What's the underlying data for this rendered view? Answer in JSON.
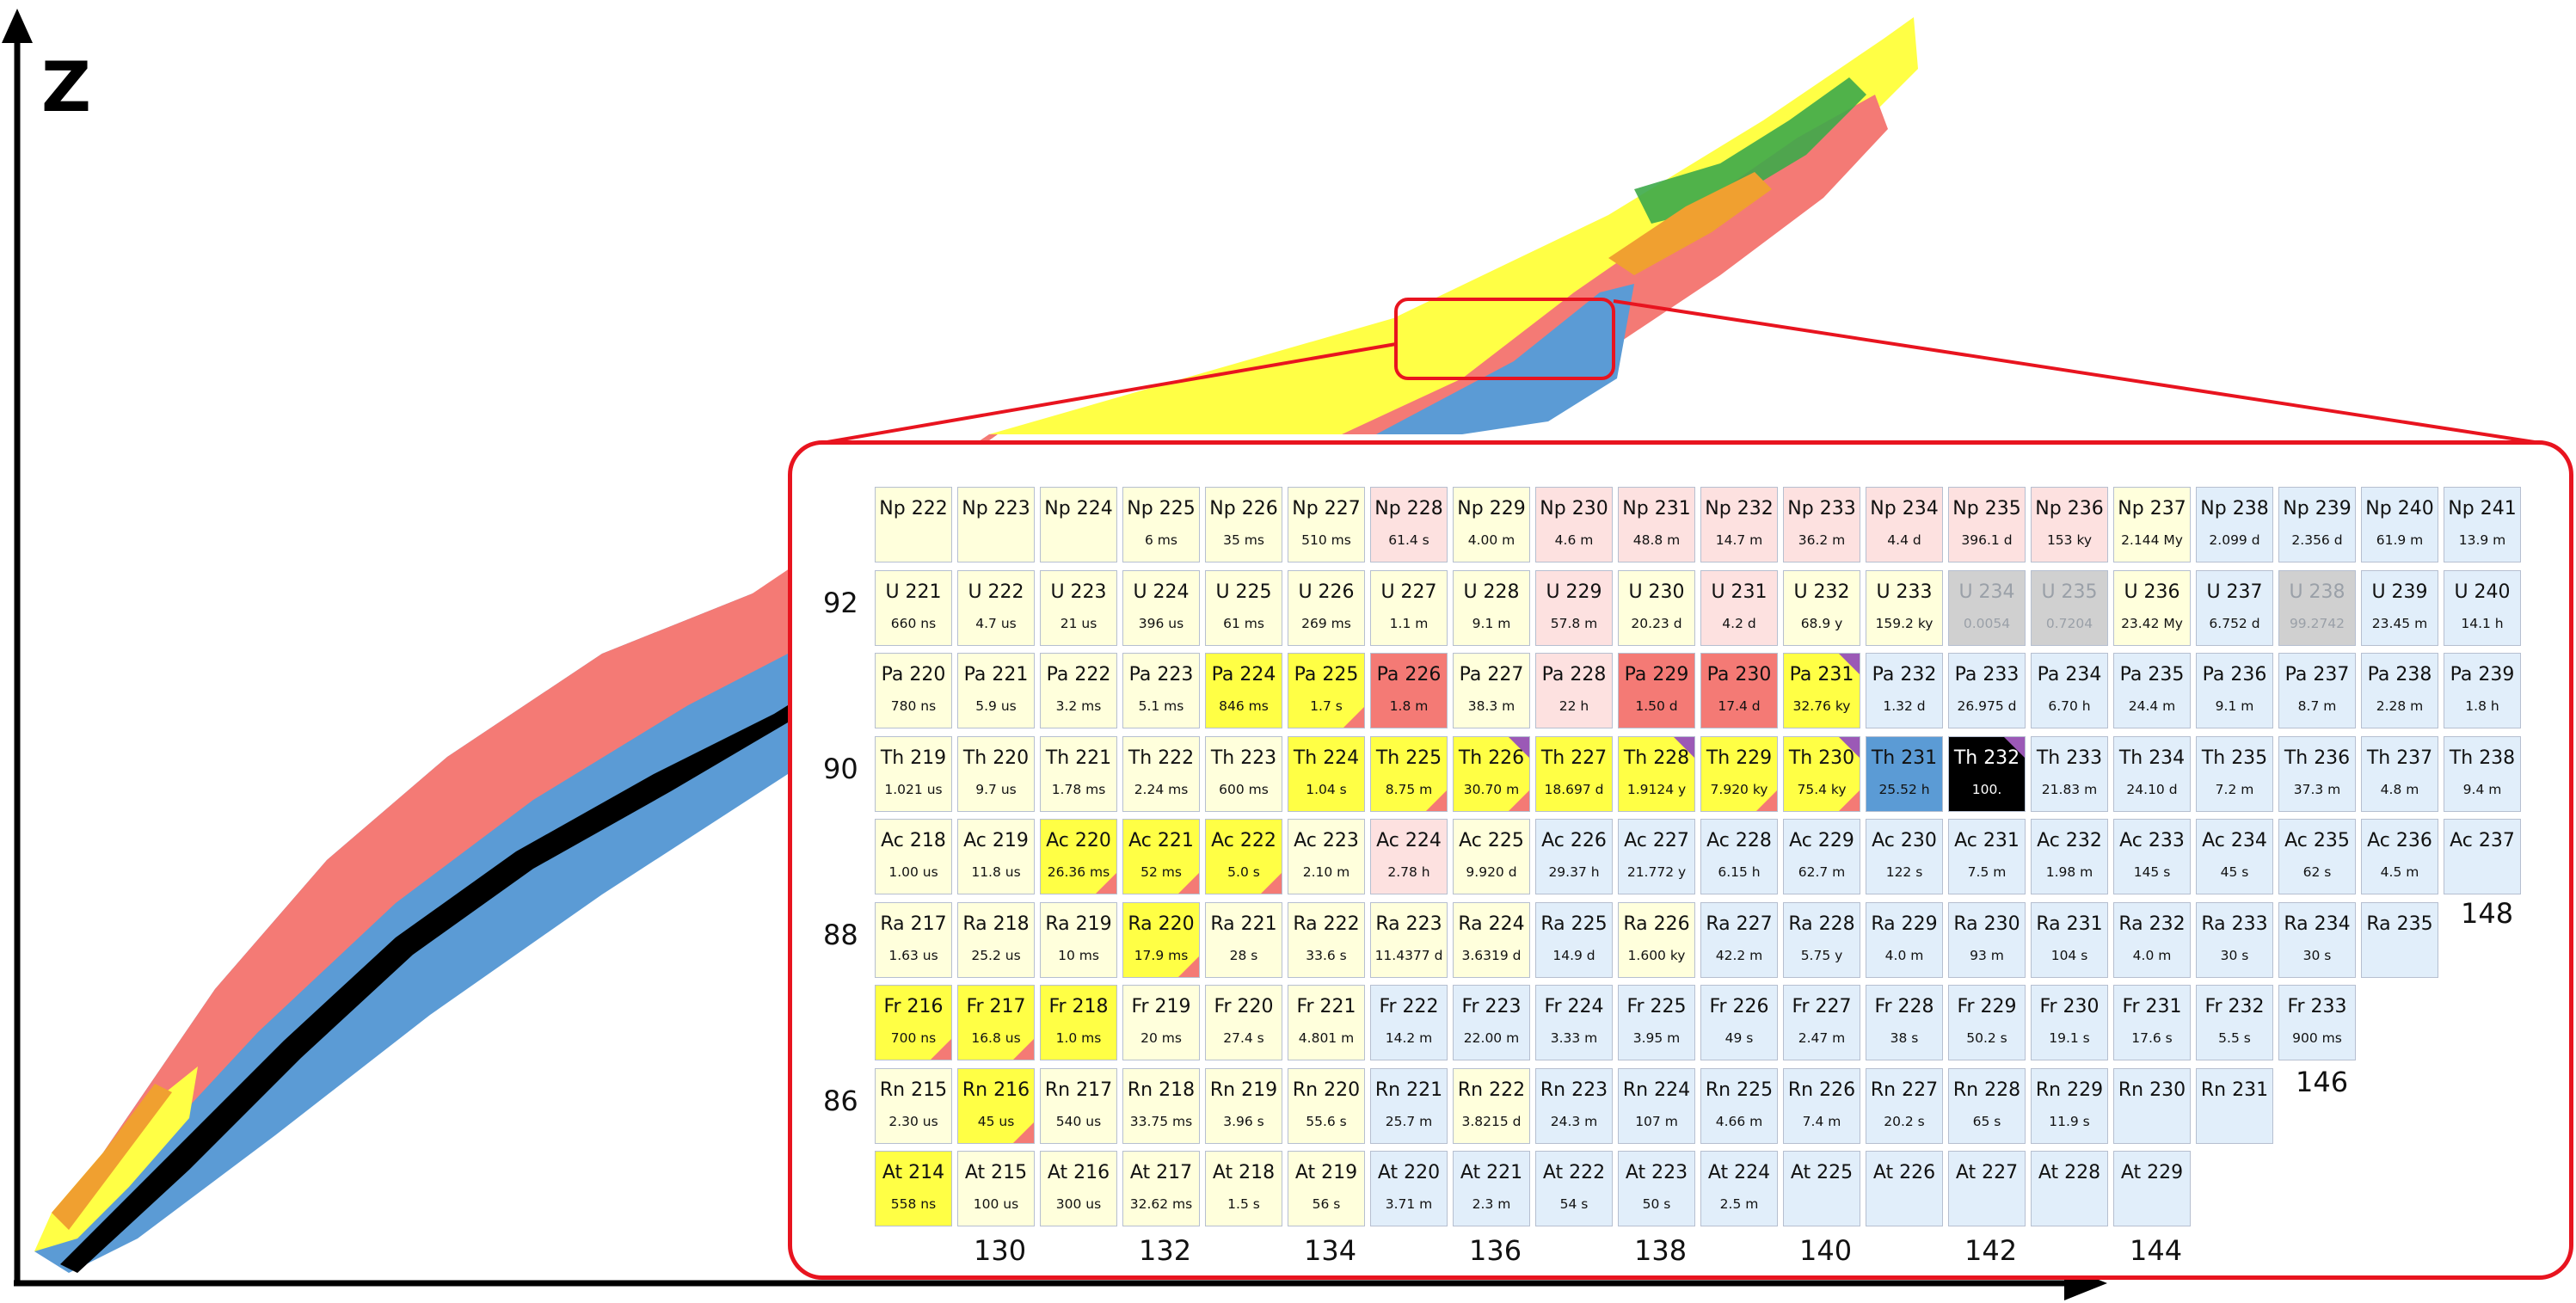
{
  "axis": {
    "z_label": "Z"
  },
  "z_labels": [
    "92",
    "90",
    "88",
    "86"
  ],
  "n_labels_bottom": [
    "130",
    "132",
    "134",
    "136",
    "138",
    "140",
    "142",
    "144"
  ],
  "n_labels_side": [
    "148",
    "146"
  ],
  "colors": {
    "alpha": "#ffff45",
    "alpha_light": "#ffffdc",
    "beta_minus": "#5b9bd5",
    "beta_minus_light": "#e1eefa",
    "beta_plus": "#f47a75",
    "beta_plus_light": "#fde1e0",
    "stable": "#000000",
    "sf": "#3daa4a",
    "cluster": "#9b59b6",
    "zoom_border": "#e8141f",
    "unknown": "#d0d0d0"
  },
  "rows": [
    {
      "z": 93,
      "cells": [
        {
          "n": "Np 222",
          "h": "",
          "c": "ay"
        },
        {
          "n": "Np 223",
          "h": "",
          "c": "ay"
        },
        {
          "n": "Np 224",
          "h": "",
          "c": "ay"
        },
        {
          "n": "Np 225",
          "h": "6 ms",
          "c": "ay"
        },
        {
          "n": "Np 226",
          "h": "35 ms",
          "c": "ay"
        },
        {
          "n": "Np 227",
          "h": "510 ms",
          "c": "ay"
        },
        {
          "n": "Np 228",
          "h": "61.4 s",
          "c": "pr"
        },
        {
          "n": "Np 229",
          "h": "4.00 m",
          "c": "ay"
        },
        {
          "n": "Np 230",
          "h": "4.6 m",
          "c": "pr"
        },
        {
          "n": "Np 231",
          "h": "48.8 m",
          "c": "pr"
        },
        {
          "n": "Np 232",
          "h": "14.7 m",
          "c": "pr"
        },
        {
          "n": "Np 233",
          "h": "36.2 m",
          "c": "pr"
        },
        {
          "n": "Np 234",
          "h": "4.4 d",
          "c": "pr"
        },
        {
          "n": "Np 235",
          "h": "396.1 d",
          "c": "pr"
        },
        {
          "n": "Np 236",
          "h": "153 ky",
          "c": "pr"
        },
        {
          "n": "Np 237",
          "h": "2.144 My",
          "c": "ay"
        },
        {
          "n": "Np 238",
          "h": "2.099 d",
          "c": "bl"
        },
        {
          "n": "Np 239",
          "h": "2.356 d",
          "c": "bl"
        },
        {
          "n": "Np 240",
          "h": "61.9 m",
          "c": "bl"
        },
        {
          "n": "Np 241",
          "h": "13.9 m",
          "c": "bl"
        }
      ]
    },
    {
      "z": 92,
      "cells": [
        {
          "n": "U 221",
          "h": "660 ns",
          "c": "ay"
        },
        {
          "n": "U 222",
          "h": "4.7 us",
          "c": "ay"
        },
        {
          "n": "U 223",
          "h": "21 us",
          "c": "ay"
        },
        {
          "n": "U 224",
          "h": "396 us",
          "c": "ay"
        },
        {
          "n": "U 225",
          "h": "61 ms",
          "c": "ay"
        },
        {
          "n": "U 226",
          "h": "269 ms",
          "c": "ay"
        },
        {
          "n": "U 227",
          "h": "1.1 m",
          "c": "ay"
        },
        {
          "n": "U 228",
          "h": "9.1 m",
          "c": "ay"
        },
        {
          "n": "U 229",
          "h": "57.8 m",
          "c": "pr"
        },
        {
          "n": "U 230",
          "h": "20.23 d",
          "c": "ay"
        },
        {
          "n": "U 231",
          "h": "4.2 d",
          "c": "pr"
        },
        {
          "n": "U 232",
          "h": "68.9 y",
          "c": "ay"
        },
        {
          "n": "U 233",
          "h": "159.2 ky",
          "c": "ay"
        },
        {
          "n": "U 234",
          "h": "0.0054",
          "c": "gy"
        },
        {
          "n": "U 235",
          "h": "0.7204",
          "c": "gy"
        },
        {
          "n": "U 236",
          "h": "23.42 My",
          "c": "ay"
        },
        {
          "n": "U 237",
          "h": "6.752 d",
          "c": "bl"
        },
        {
          "n": "U 238",
          "h": "99.2742",
          "c": "gy"
        },
        {
          "n": "U 239",
          "h": "23.45 m",
          "c": "bl"
        },
        {
          "n": "U 240",
          "h": "14.1 h",
          "c": "bl"
        }
      ]
    },
    {
      "z": 91,
      "cells": [
        {
          "n": "Pa 220",
          "h": "780 ns",
          "c": "ay"
        },
        {
          "n": "Pa 221",
          "h": "5.9 us",
          "c": "ay"
        },
        {
          "n": "Pa 222",
          "h": "3.2 ms",
          "c": "ay"
        },
        {
          "n": "Pa 223",
          "h": "5.1 ms",
          "c": "ay"
        },
        {
          "n": "Pa 224",
          "h": "846 ms",
          "c": "AY"
        },
        {
          "n": "Pa 225",
          "h": "1.7 s",
          "c": "AY"
        },
        {
          "n": "Pa 226",
          "h": "1.8 m",
          "c": "RD"
        },
        {
          "n": "Pa 227",
          "h": "38.3 m",
          "c": "ay"
        },
        {
          "n": "Pa 228",
          "h": "22 h",
          "c": "pr"
        },
        {
          "n": "Pa 229",
          "h": "1.50 d",
          "c": "RD"
        },
        {
          "n": "Pa 230",
          "h": "17.4 d",
          "c": "RD"
        },
        {
          "n": "Pa 231",
          "h": "32.76 ky",
          "c": "AY"
        },
        {
          "n": "Pa 232",
          "h": "1.32 d",
          "c": "bl"
        },
        {
          "n": "Pa 233",
          "h": "26.975 d",
          "c": "bl"
        },
        {
          "n": "Pa 234",
          "h": "6.70 h",
          "c": "bl"
        },
        {
          "n": "Pa 235",
          "h": "24.4 m",
          "c": "bl"
        },
        {
          "n": "Pa 236",
          "h": "9.1 m",
          "c": "bl"
        },
        {
          "n": "Pa 237",
          "h": "8.7 m",
          "c": "bl"
        },
        {
          "n": "Pa 238",
          "h": "2.28 m",
          "c": "bl"
        },
        {
          "n": "Pa 239",
          "h": "1.8 h",
          "c": "bl"
        }
      ]
    },
    {
      "z": 90,
      "cells": [
        {
          "n": "Th 219",
          "h": "1.021 us",
          "c": "ay"
        },
        {
          "n": "Th 220",
          "h": "9.7 us",
          "c": "ay"
        },
        {
          "n": "Th 221",
          "h": "1.78 ms",
          "c": "ay"
        },
        {
          "n": "Th 222",
          "h": "2.24 ms",
          "c": "ay"
        },
        {
          "n": "Th 223",
          "h": "600 ms",
          "c": "ay"
        },
        {
          "n": "Th 224",
          "h": "1.04 s",
          "c": "AY"
        },
        {
          "n": "Th 225",
          "h": "8.75 m",
          "c": "AY"
        },
        {
          "n": "Th 226",
          "h": "30.70 m",
          "c": "AY"
        },
        {
          "n": "Th 227",
          "h": "18.697 d",
          "c": "AY"
        },
        {
          "n": "Th 228",
          "h": "1.9124 y",
          "c": "AY"
        },
        {
          "n": "Th 229",
          "h": "7.920 ky",
          "c": "AY"
        },
        {
          "n": "Th 230",
          "h": "75.4 ky",
          "c": "AY"
        },
        {
          "n": "Th 231",
          "h": "25.52 h",
          "c": "BL"
        },
        {
          "n": "Th 232",
          "h": "100.",
          "c": "ST"
        },
        {
          "n": "Th 233",
          "h": "21.83 m",
          "c": "bl"
        },
        {
          "n": "Th 234",
          "h": "24.10 d",
          "c": "bl"
        },
        {
          "n": "Th 235",
          "h": "7.2 m",
          "c": "bl"
        },
        {
          "n": "Th 236",
          "h": "37.3 m",
          "c": "bl"
        },
        {
          "n": "Th 237",
          "h": "4.8 m",
          "c": "bl"
        },
        {
          "n": "Th 238",
          "h": "9.4 m",
          "c": "bl"
        }
      ]
    },
    {
      "z": 89,
      "cells": [
        {
          "n": "Ac 218",
          "h": "1.00 us",
          "c": "ay"
        },
        {
          "n": "Ac 219",
          "h": "11.8 us",
          "c": "ay"
        },
        {
          "n": "Ac 220",
          "h": "26.36 ms",
          "c": "AY"
        },
        {
          "n": "Ac 221",
          "h": "52 ms",
          "c": "AY"
        },
        {
          "n": "Ac 222",
          "h": "5.0 s",
          "c": "AY"
        },
        {
          "n": "Ac 223",
          "h": "2.10 m",
          "c": "ay"
        },
        {
          "n": "Ac 224",
          "h": "2.78 h",
          "c": "pr"
        },
        {
          "n": "Ac 225",
          "h": "9.920 d",
          "c": "ay"
        },
        {
          "n": "Ac 226",
          "h": "29.37 h",
          "c": "bl"
        },
        {
          "n": "Ac 227",
          "h": "21.772 y",
          "c": "bl"
        },
        {
          "n": "Ac 228",
          "h": "6.15 h",
          "c": "bl"
        },
        {
          "n": "Ac 229",
          "h": "62.7 m",
          "c": "bl"
        },
        {
          "n": "Ac 230",
          "h": "122 s",
          "c": "bl"
        },
        {
          "n": "Ac 231",
          "h": "7.5 m",
          "c": "bl"
        },
        {
          "n": "Ac 232",
          "h": "1.98 m",
          "c": "bl"
        },
        {
          "n": "Ac 233",
          "h": "145 s",
          "c": "bl"
        },
        {
          "n": "Ac 234",
          "h": "45 s",
          "c": "bl"
        },
        {
          "n": "Ac 235",
          "h": "62 s",
          "c": "bl"
        },
        {
          "n": "Ac 236",
          "h": "4.5 m",
          "c": "bl"
        },
        {
          "n": "Ac 237",
          "h": "",
          "c": "bl"
        }
      ]
    },
    {
      "z": 88,
      "cells": [
        {
          "n": "Ra 217",
          "h": "1.63 us",
          "c": "ay"
        },
        {
          "n": "Ra 218",
          "h": "25.2 us",
          "c": "ay"
        },
        {
          "n": "Ra 219",
          "h": "10 ms",
          "c": "ay"
        },
        {
          "n": "Ra 220",
          "h": "17.9 ms",
          "c": "AY"
        },
        {
          "n": "Ra 221",
          "h": "28 s",
          "c": "ay"
        },
        {
          "n": "Ra 222",
          "h": "33.6 s",
          "c": "ay"
        },
        {
          "n": "Ra 223",
          "h": "11.4377 d",
          "c": "ay"
        },
        {
          "n": "Ra 224",
          "h": "3.6319 d",
          "c": "ay"
        },
        {
          "n": "Ra 225",
          "h": "14.9 d",
          "c": "bl"
        },
        {
          "n": "Ra 226",
          "h": "1.600 ky",
          "c": "ay"
        },
        {
          "n": "Ra 227",
          "h": "42.2 m",
          "c": "bl"
        },
        {
          "n": "Ra 228",
          "h": "5.75 y",
          "c": "bl"
        },
        {
          "n": "Ra 229",
          "h": "4.0 m",
          "c": "bl"
        },
        {
          "n": "Ra 230",
          "h": "93 m",
          "c": "bl"
        },
        {
          "n": "Ra 231",
          "h": "104 s",
          "c": "bl"
        },
        {
          "n": "Ra 232",
          "h": "4.0 m",
          "c": "bl"
        },
        {
          "n": "Ra 233",
          "h": "30 s",
          "c": "bl"
        },
        {
          "n": "Ra 234",
          "h": "30 s",
          "c": "bl"
        },
        {
          "n": "Ra 235",
          "h": "",
          "c": "bl"
        }
      ]
    },
    {
      "z": 87,
      "cells": [
        {
          "n": "Fr 216",
          "h": "700 ns",
          "c": "AY"
        },
        {
          "n": "Fr 217",
          "h": "16.8 us",
          "c": "AY"
        },
        {
          "n": "Fr 218",
          "h": "1.0 ms",
          "c": "AY"
        },
        {
          "n": "Fr 219",
          "h": "20 ms",
          "c": "ay"
        },
        {
          "n": "Fr 220",
          "h": "27.4 s",
          "c": "ay"
        },
        {
          "n": "Fr 221",
          "h": "4.801 m",
          "c": "ay"
        },
        {
          "n": "Fr 222",
          "h": "14.2 m",
          "c": "bl"
        },
        {
          "n": "Fr 223",
          "h": "22.00 m",
          "c": "bl"
        },
        {
          "n": "Fr 224",
          "h": "3.33 m",
          "c": "bl"
        },
        {
          "n": "Fr 225",
          "h": "3.95 m",
          "c": "bl"
        },
        {
          "n": "Fr 226",
          "h": "49 s",
          "c": "bl"
        },
        {
          "n": "Fr 227",
          "h": "2.47 m",
          "c": "bl"
        },
        {
          "n": "Fr 228",
          "h": "38 s",
          "c": "bl"
        },
        {
          "n": "Fr 229",
          "h": "50.2 s",
          "c": "bl"
        },
        {
          "n": "Fr 230",
          "h": "19.1 s",
          "c": "bl"
        },
        {
          "n": "Fr 231",
          "h": "17.6 s",
          "c": "bl"
        },
        {
          "n": "Fr 232",
          "h": "5.5 s",
          "c": "bl"
        },
        {
          "n": "Fr 233",
          "h": "900 ms",
          "c": "bl"
        }
      ]
    },
    {
      "z": 86,
      "cells": [
        {
          "n": "Rn 215",
          "h": "2.30 us",
          "c": "ay"
        },
        {
          "n": "Rn 216",
          "h": "45 us",
          "c": "AY"
        },
        {
          "n": "Rn 217",
          "h": "540 us",
          "c": "ay"
        },
        {
          "n": "Rn 218",
          "h": "33.75 ms",
          "c": "ay"
        },
        {
          "n": "Rn 219",
          "h": "3.96 s",
          "c": "ay"
        },
        {
          "n": "Rn 220",
          "h": "55.6 s",
          "c": "ay"
        },
        {
          "n": "Rn 221",
          "h": "25.7 m",
          "c": "bl"
        },
        {
          "n": "Rn 222",
          "h": "3.8215 d",
          "c": "ay"
        },
        {
          "n": "Rn 223",
          "h": "24.3 m",
          "c": "bl"
        },
        {
          "n": "Rn 224",
          "h": "107 m",
          "c": "bl"
        },
        {
          "n": "Rn 225",
          "h": "4.66 m",
          "c": "bl"
        },
        {
          "n": "Rn 226",
          "h": "7.4 m",
          "c": "bl"
        },
        {
          "n": "Rn 227",
          "h": "20.2 s",
          "c": "bl"
        },
        {
          "n": "Rn 228",
          "h": "65 s",
          "c": "bl"
        },
        {
          "n": "Rn 229",
          "h": "11.9 s",
          "c": "bl"
        },
        {
          "n": "Rn 230",
          "h": "",
          "c": "bl"
        },
        {
          "n": "Rn 231",
          "h": "",
          "c": "bl"
        }
      ]
    },
    {
      "z": 85,
      "cells": [
        {
          "n": "At 214",
          "h": "558 ns",
          "c": "AY"
        },
        {
          "n": "At 215",
          "h": "100 us",
          "c": "ay"
        },
        {
          "n": "At 216",
          "h": "300 us",
          "c": "ay"
        },
        {
          "n": "At 217",
          "h": "32.62 ms",
          "c": "ay"
        },
        {
          "n": "At 218",
          "h": "1.5 s",
          "c": "ay"
        },
        {
          "n": "At 219",
          "h": "56 s",
          "c": "ay"
        },
        {
          "n": "At 220",
          "h": "3.71 m",
          "c": "bl"
        },
        {
          "n": "At 221",
          "h": "2.3 m",
          "c": "bl"
        },
        {
          "n": "At 222",
          "h": "54 s",
          "c": "bl"
        },
        {
          "n": "At 223",
          "h": "50 s",
          "c": "bl"
        },
        {
          "n": "At 224",
          "h": "2.5 m",
          "c": "bl"
        },
        {
          "n": "At 225",
          "h": "",
          "c": "bl"
        },
        {
          "n": "At 226",
          "h": "",
          "c": "bl"
        },
        {
          "n": "At 227",
          "h": "",
          "c": "bl"
        },
        {
          "n": "At 228",
          "h": "",
          "c": "bl"
        },
        {
          "n": "At 229",
          "h": "",
          "c": "bl"
        }
      ]
    }
  ]
}
